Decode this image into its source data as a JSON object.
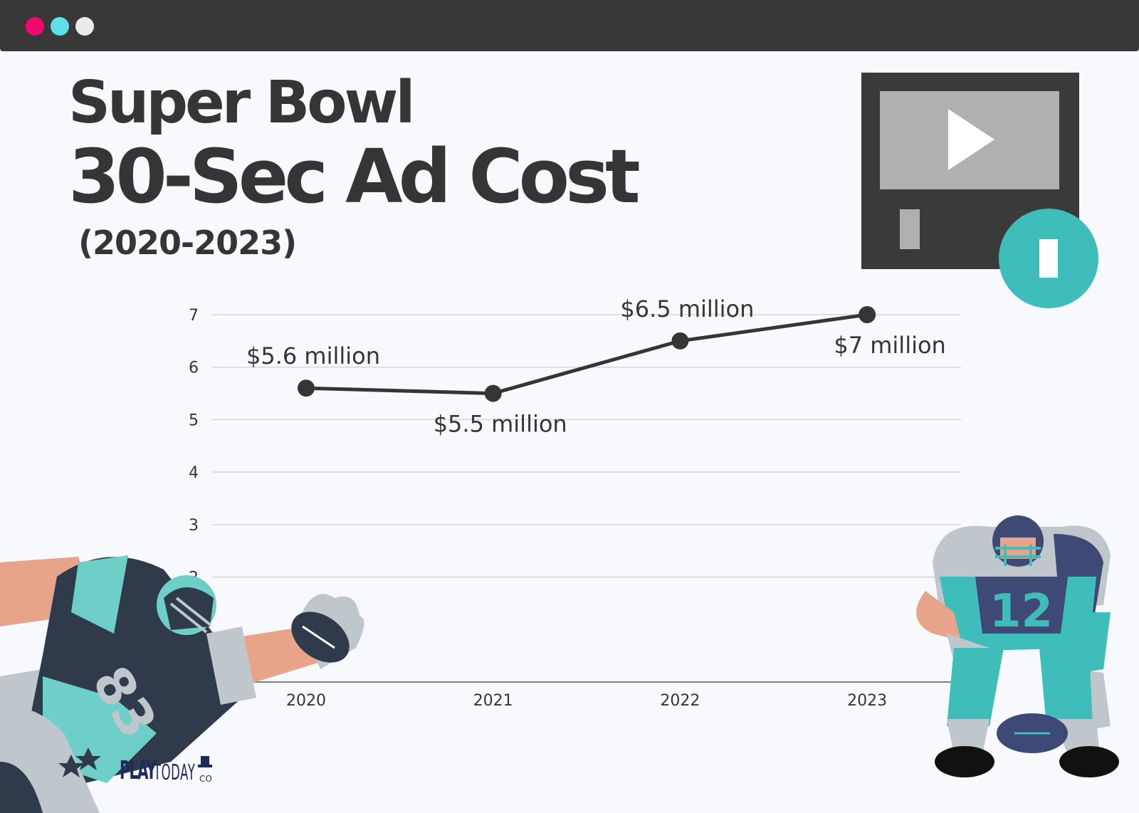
{
  "window": {
    "dots": [
      "#f2086e",
      "#5fe0e8",
      "#eaeaea"
    ]
  },
  "title": {
    "line1": "Super Bowl",
    "line2": "30-Sec Ad Cost",
    "line3": "(2020-2023)"
  },
  "colors": {
    "text": "#353535",
    "line": "#353535",
    "grid": "#d7d7d7",
    "teal": "#3fbdbb",
    "navy": "#2f3b4a"
  },
  "icons": [
    "video-player-icon",
    "play-icon",
    "pause-icon"
  ],
  "logo": {
    "play": "PLAY",
    "today": "TODAY",
    "co": "CO"
  },
  "jerseys": {
    "left": "83",
    "right": "12"
  },
  "chart_data": {
    "type": "line",
    "title": "Super Bowl 30-Sec Ad Cost (2020-2023)",
    "xlabel": "",
    "ylabel": "",
    "x": [
      "2020",
      "2021",
      "2022",
      "2023"
    ],
    "values": [
      5.6,
      5.5,
      6.5,
      7
    ],
    "data_labels": [
      "$5.6 million",
      "$5.5 million",
      "$6.5 million",
      "$7 million"
    ],
    "label_positions": [
      "above",
      "below",
      "above",
      "below"
    ],
    "y_ticks": [
      "2",
      "3",
      "4",
      "5",
      "6",
      "7"
    ],
    "ylim": [
      0,
      7
    ],
    "grid": true,
    "legend": "none"
  }
}
